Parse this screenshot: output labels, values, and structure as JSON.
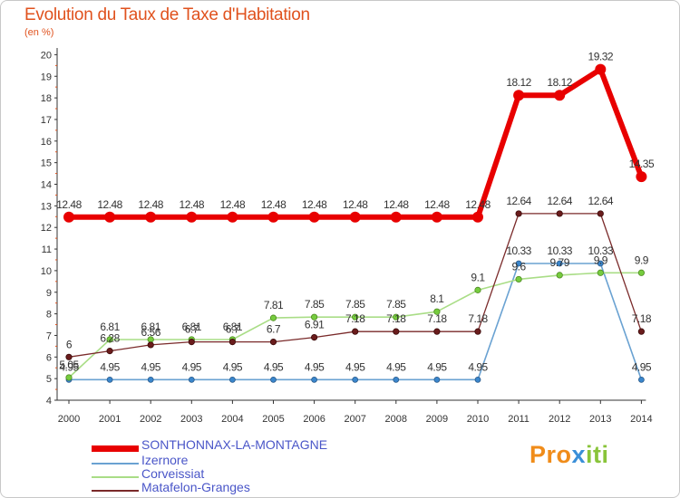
{
  "header": {
    "title": "Evolution du Taux de Taxe d'Habitation",
    "unit": "(en %)"
  },
  "chart_data": {
    "type": "line",
    "title": "Evolution du Taux de Taxe d'Habitation",
    "ylabel": "(en %)",
    "xlabel": "",
    "ylim": [
      4,
      20
    ],
    "grid": false,
    "categories": [
      "2000",
      "2001",
      "2002",
      "2003",
      "2004",
      "2005",
      "2006",
      "2007",
      "2008",
      "2009",
      "2010",
      "2011",
      "2012",
      "2013",
      "2014"
    ],
    "yticks": [
      "4",
      "5",
      "6",
      "7",
      "8",
      "9",
      "10",
      "11",
      "12",
      "13",
      "14",
      "15",
      "16",
      "17",
      "18",
      "19",
      "20"
    ],
    "series": [
      {
        "name": "SONTHONNAX-LA-MONTAGNE",
        "color": "#e80000",
        "marker": "#e80000",
        "values": [
          12.48,
          12.48,
          12.48,
          12.48,
          12.48,
          12.48,
          12.48,
          12.48,
          12.48,
          12.48,
          12.48,
          18.12,
          18.12,
          19.32,
          14.35
        ],
        "labels": [
          "12.48",
          "12.48",
          "12.48",
          "12.48",
          "12.48",
          "12.48",
          "12.48",
          "12.48",
          "12.48",
          "12.48",
          "12.48",
          "18.12",
          "18.12",
          "19.32",
          "14.35"
        ]
      },
      {
        "name": "Izernore",
        "color": "#6aa2d2",
        "marker": "#3a86cc",
        "values": [
          4.95,
          4.95,
          4.95,
          4.95,
          4.95,
          4.95,
          4.95,
          4.95,
          4.95,
          4.95,
          4.95,
          10.33,
          10.33,
          10.33,
          4.95
        ],
        "labels": [
          "4.95",
          "4.95",
          "4.95",
          "4.95",
          "4.95",
          "4.95",
          "4.95",
          "4.95",
          "4.95",
          "4.95",
          "4.95",
          "10.33",
          "10.33",
          "10.33",
          "4.95"
        ]
      },
      {
        "name": "Corveissiat",
        "color": "#a9dd86",
        "marker": "#76cc3e",
        "values": [
          5.05,
          6.81,
          6.81,
          6.81,
          6.81,
          7.81,
          7.85,
          7.85,
          7.85,
          8.1,
          9.1,
          9.6,
          9.79,
          9.9,
          9.9
        ],
        "labels": [
          "5.05",
          "6.81",
          "6.81",
          "6.81",
          "6.81",
          "7.81",
          "7.85",
          "7.85",
          "7.85",
          "8.1",
          "9.1",
          "9.6",
          "9.79",
          "9.9",
          "9.9"
        ]
      },
      {
        "name": "Matafelon-Granges",
        "color": "#7a2a2a",
        "marker": "#6a1c1c",
        "values": [
          6,
          6.28,
          6.56,
          6.7,
          6.7,
          6.7,
          6.91,
          7.18,
          7.18,
          7.18,
          7.18,
          12.64,
          12.64,
          12.64,
          7.18
        ],
        "labels": [
          "6",
          "6.28",
          "6.56",
          "6.7",
          "6.7",
          "6.7",
          "6.91",
          "7.18",
          "7.18",
          "7.18",
          "7.18",
          "12.64",
          "12.64",
          "12.64",
          "7.18"
        ]
      }
    ],
    "legend": "bottom-left"
  },
  "legend": {
    "items": [
      {
        "label": "SONTHONNAX-LA-MONTAGNE",
        "color": "#e80000"
      },
      {
        "label": "Izernore",
        "color": "#6aa2d2"
      },
      {
        "label": "Corveissiat",
        "color": "#a9dd86"
      },
      {
        "label": "Matafelon-Granges",
        "color": "#7a2a2a"
      }
    ]
  },
  "logo": {
    "part1": "Pro",
    "part2": "x",
    "part3": "iti"
  }
}
